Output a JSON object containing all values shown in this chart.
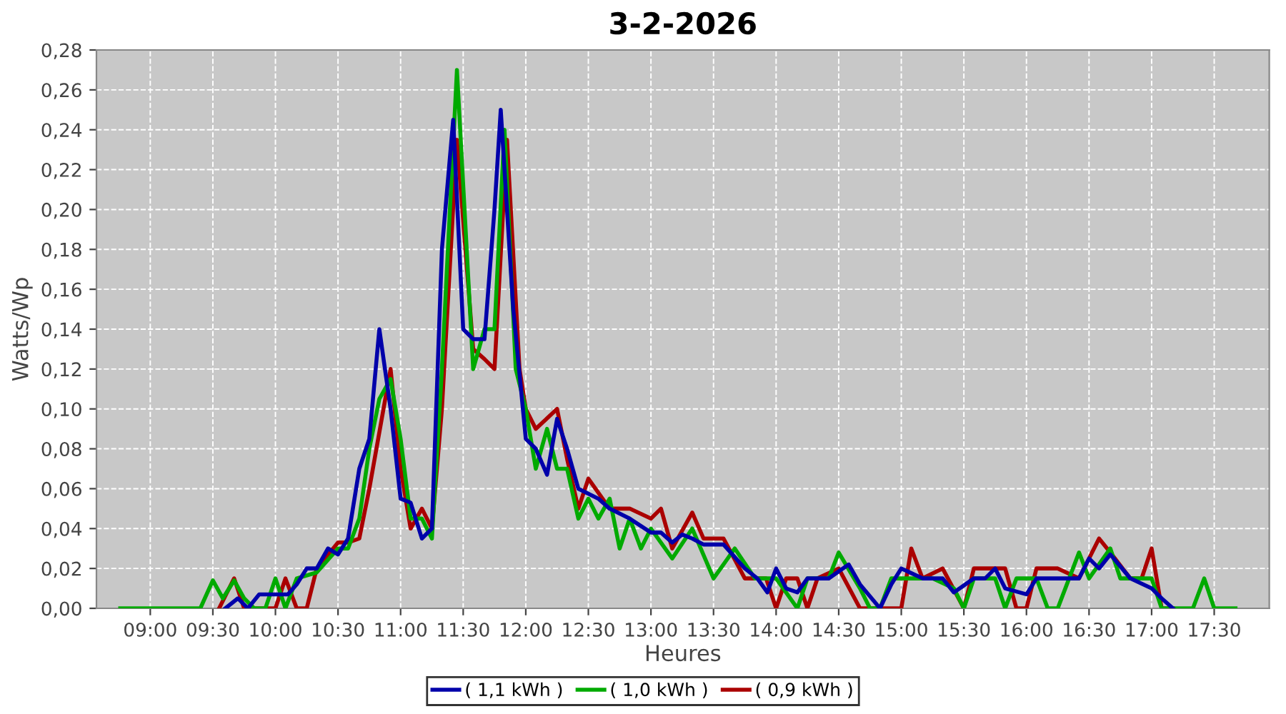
{
  "chart_data": {
    "type": "line",
    "title": "3-2-2026",
    "xlabel": "Heures",
    "ylabel": "Watts/Wp",
    "xlim": [
      8.57,
      17.94
    ],
    "xticks": [
      {
        "value": 9,
        "label": "09:00"
      },
      {
        "value": 9.5,
        "label": "09:30"
      },
      {
        "value": 10,
        "label": "10:00"
      },
      {
        "value": 10.5,
        "label": "10:30"
      },
      {
        "value": 11,
        "label": "11:00"
      },
      {
        "value": 11.5,
        "label": "11:30"
      },
      {
        "value": 12,
        "label": "12:00"
      },
      {
        "value": 12.5,
        "label": "12:30"
      },
      {
        "value": 13,
        "label": "13:00"
      },
      {
        "value": 13.5,
        "label": "13:30"
      },
      {
        "value": 14,
        "label": "14:00"
      },
      {
        "value": 14.5,
        "label": "14:30"
      },
      {
        "value": 15,
        "label": "15:00"
      },
      {
        "value": 15.5,
        "label": "15:30"
      },
      {
        "value": 16,
        "label": "16:00"
      },
      {
        "value": 16.5,
        "label": "16:30"
      },
      {
        "value": 17,
        "label": "17:00"
      },
      {
        "value": 17.5,
        "label": "17:30"
      }
    ],
    "ylim": [
      0,
      0.28
    ],
    "yticks": [
      {
        "value": 0,
        "label": "0,00"
      },
      {
        "value": 0.02,
        "label": "0,02"
      },
      {
        "value": 0.04,
        "label": "0,04"
      },
      {
        "value": 0.06,
        "label": "0,06"
      },
      {
        "value": 0.08,
        "label": "0,08"
      },
      {
        "value": 0.1,
        "label": "0,10"
      },
      {
        "value": 0.12,
        "label": "0,12"
      },
      {
        "value": 0.14,
        "label": "0,14"
      },
      {
        "value": 0.16,
        "label": "0,16"
      },
      {
        "value": 0.18,
        "label": "0,18"
      },
      {
        "value": 0.2,
        "label": "0,20"
      },
      {
        "value": 0.22,
        "label": "0,22"
      },
      {
        "value": 0.24,
        "label": "0,24"
      },
      {
        "value": 0.26,
        "label": "0,26"
      },
      {
        "value": 0.28,
        "label": "0,28"
      }
    ],
    "grid": true,
    "legend": "bottom",
    "line_style": "solid",
    "marker": "none",
    "series": [
      {
        "name": "( 1,1 kWh )",
        "color": "#0000aa",
        "x": [
          9.6,
          9.7,
          9.78,
          9.87,
          10.0,
          10.1,
          10.17,
          10.25,
          10.33,
          10.42,
          10.5,
          10.58,
          10.67,
          10.75,
          10.83,
          10.92,
          11.0,
          11.08,
          11.17,
          11.25,
          11.33,
          11.42,
          11.5,
          11.58,
          11.67,
          11.75,
          11.8,
          11.9,
          12.0,
          12.08,
          12.17,
          12.25,
          12.33,
          12.42,
          12.58,
          12.67,
          12.83,
          13.0,
          13.08,
          13.17,
          13.25,
          13.33,
          13.42,
          13.58,
          13.75,
          13.85,
          13.93,
          14.0,
          14.08,
          14.17,
          14.25,
          14.42,
          14.58,
          14.67,
          14.83,
          14.92,
          15.0,
          15.17,
          15.33,
          15.42,
          15.58,
          15.67,
          15.75,
          15.83,
          16.0,
          16.08,
          16.25,
          16.42,
          16.5,
          16.58,
          16.67,
          16.83,
          17.0,
          17.08,
          17.17
        ],
        "values": [
          0,
          0.005,
          0,
          0.007,
          0.007,
          0.007,
          0.012,
          0.02,
          0.02,
          0.03,
          0.027,
          0.035,
          0.07,
          0.085,
          0.14,
          0.1,
          0.055,
          0.053,
          0.035,
          0.04,
          0.18,
          0.245,
          0.14,
          0.135,
          0.135,
          0.2,
          0.25,
          0.15,
          0.085,
          0.08,
          0.067,
          0.095,
          0.08,
          0.06,
          0.055,
          0.05,
          0.045,
          0.038,
          0.038,
          0.033,
          0.037,
          0.035,
          0.032,
          0.032,
          0.02,
          0.015,
          0.008,
          0.02,
          0.01,
          0.008,
          0.015,
          0.015,
          0.022,
          0.012,
          0,
          0.012,
          0.02,
          0.015,
          0.015,
          0.008,
          0.015,
          0.015,
          0.02,
          0.01,
          0.007,
          0.015,
          0.015,
          0.015,
          0.025,
          0.02,
          0.027,
          0.015,
          0.01,
          0.005,
          0
        ]
      },
      {
        "name": "( 1,0 kWh )",
        "color": "#00aa00",
        "x": [
          8.76,
          9.4,
          9.5,
          9.58,
          9.67,
          9.75,
          9.83,
          9.92,
          10.0,
          10.08,
          10.17,
          10.33,
          10.5,
          10.58,
          10.67,
          10.75,
          10.83,
          10.92,
          11.0,
          11.08,
          11.17,
          11.25,
          11.33,
          11.45,
          11.58,
          11.67,
          11.75,
          11.83,
          11.92,
          12.0,
          12.08,
          12.17,
          12.25,
          12.33,
          12.42,
          12.5,
          12.58,
          12.67,
          12.75,
          12.83,
          12.92,
          13.0,
          13.17,
          13.33,
          13.5,
          13.67,
          13.83,
          14.0,
          14.17,
          14.25,
          14.42,
          14.5,
          14.67,
          14.75,
          14.83,
          14.92,
          15.08,
          15.25,
          15.42,
          15.5,
          15.58,
          15.75,
          15.83,
          15.92,
          16.08,
          16.17,
          16.25,
          16.42,
          16.5,
          16.67,
          16.75,
          16.92,
          17.0,
          17.08,
          17.33,
          17.42,
          17.5,
          17.67
        ],
        "values": [
          0,
          0,
          0.014,
          0.005,
          0.014,
          0.005,
          0,
          0,
          0.015,
          0,
          0.015,
          0.018,
          0.03,
          0.03,
          0.045,
          0.08,
          0.105,
          0.115,
          0.085,
          0.045,
          0.045,
          0.035,
          0.12,
          0.27,
          0.12,
          0.14,
          0.14,
          0.24,
          0.12,
          0.1,
          0.07,
          0.09,
          0.07,
          0.07,
          0.045,
          0.055,
          0.045,
          0.055,
          0.03,
          0.045,
          0.03,
          0.04,
          0.025,
          0.04,
          0.015,
          0.03,
          0.015,
          0.015,
          0,
          0.015,
          0.015,
          0.028,
          0.01,
          0,
          0,
          0.015,
          0.015,
          0.015,
          0.01,
          0,
          0.015,
          0.015,
          0,
          0.015,
          0.015,
          0,
          0,
          0.028,
          0.015,
          0.03,
          0.015,
          0.015,
          0.015,
          0,
          0,
          0.015,
          0,
          0
        ]
      },
      {
        "name": "( 0,9 kWh )",
        "color": "#aa0000",
        "x": [
          9.55,
          9.67,
          9.75,
          10.0,
          10.08,
          10.17,
          10.25,
          10.33,
          10.5,
          10.58,
          10.67,
          10.75,
          10.92,
          11.0,
          11.08,
          11.17,
          11.25,
          11.33,
          11.45,
          11.58,
          11.67,
          11.75,
          11.85,
          11.95,
          12.0,
          12.08,
          12.25,
          12.33,
          12.42,
          12.5,
          12.67,
          12.83,
          13.0,
          13.08,
          13.17,
          13.33,
          13.42,
          13.58,
          13.75,
          13.92,
          14.0,
          14.08,
          14.17,
          14.25,
          14.33,
          14.5,
          14.67,
          14.83,
          15.0,
          15.08,
          15.17,
          15.33,
          15.5,
          15.58,
          15.67,
          15.83,
          15.92,
          16.0,
          16.08,
          16.25,
          16.42,
          16.58,
          16.67,
          16.83,
          16.92,
          17.0,
          17.08,
          17.17
        ],
        "values": [
          0,
          0.015,
          0,
          0,
          0.015,
          0,
          0,
          0.02,
          0.033,
          0.033,
          0.035,
          0.06,
          0.12,
          0.07,
          0.04,
          0.05,
          0.04,
          0.1,
          0.235,
          0.13,
          0.125,
          0.12,
          0.235,
          0.12,
          0.1,
          0.09,
          0.1,
          0.075,
          0.05,
          0.065,
          0.05,
          0.05,
          0.045,
          0.05,
          0.03,
          0.048,
          0.035,
          0.035,
          0.015,
          0.015,
          0,
          0.015,
          0.015,
          0,
          0.015,
          0.02,
          0,
          0,
          0,
          0.03,
          0.015,
          0.02,
          0,
          0.02,
          0.02,
          0.02,
          0,
          0,
          0.02,
          0.02,
          0.015,
          0.035,
          0.028,
          0.015,
          0.015,
          0.03,
          0,
          0
        ]
      }
    ]
  }
}
